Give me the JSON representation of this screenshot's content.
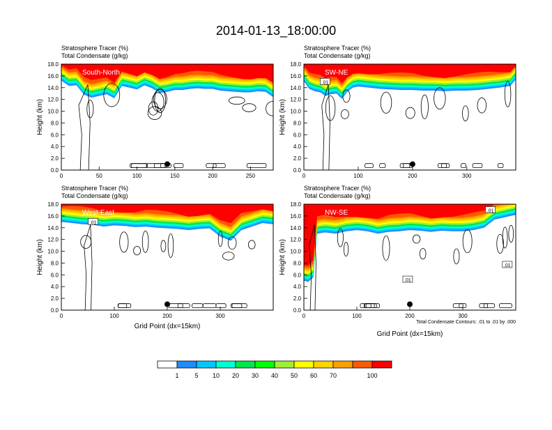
{
  "figure": {
    "title": "2014-01-13_18:00:00"
  },
  "chart_data": [
    {
      "type": "heatmap",
      "panel_label": "South-North",
      "title_lines": [
        "Stratosphere Tracer   (%)",
        "Total Condensate   (g/kg)"
      ],
      "ylabel": "Height (km)",
      "xlabel": "",
      "xlim": [
        0,
        280
      ],
      "xticks": [
        0,
        50,
        100,
        150,
        200,
        250
      ],
      "ylim": [
        0,
        18
      ],
      "yticks": [
        "0.0",
        "2.0",
        "4.0",
        "6.0",
        "8.0",
        "10.0",
        "12.0",
        "14.0",
        "16.0",
        "18.0"
      ],
      "marker_x": 140,
      "tracer_front": [
        [
          0,
          15.2
        ],
        [
          10,
          14.3
        ],
        [
          20,
          14.4
        ],
        [
          30,
          12.8
        ],
        [
          40,
          12.3
        ],
        [
          50,
          12.6
        ],
        [
          60,
          12.9
        ],
        [
          70,
          12.2
        ],
        [
          80,
          14.3
        ],
        [
          90,
          14.0
        ],
        [
          100,
          13.7
        ],
        [
          110,
          14.4
        ],
        [
          120,
          13.9
        ],
        [
          130,
          13.1
        ],
        [
          140,
          13.3
        ],
        [
          150,
          13.6
        ],
        [
          160,
          13.6
        ],
        [
          170,
          13.8
        ],
        [
          180,
          13.9
        ],
        [
          190,
          13.8
        ],
        [
          200,
          13.8
        ],
        [
          210,
          13.5
        ],
        [
          220,
          13.4
        ],
        [
          230,
          13.3
        ],
        [
          240,
          13.2
        ],
        [
          250,
          13.2
        ],
        [
          260,
          13.4
        ],
        [
          270,
          13.3
        ],
        [
          280,
          12.4
        ]
      ],
      "contour_text": []
    },
    {
      "type": "heatmap",
      "panel_label": "SW-NE",
      "title_lines": [
        "Stratosphere Tracer   (%)",
        "Total Condensate   (g/kg)"
      ],
      "ylabel": "Height (km)",
      "xlabel": "",
      "xlim": [
        0,
        390
      ],
      "xticks": [
        0,
        100,
        200,
        300
      ],
      "ylim": [
        0,
        18
      ],
      "yticks": [
        "0.0",
        "2.0",
        "4.0",
        "6.0",
        "8.0",
        "10.0",
        "12.0",
        "14.0",
        "16.0",
        "18.0"
      ],
      "marker_x": 200,
      "tracer_front": [
        [
          0,
          15.1
        ],
        [
          10,
          13.8
        ],
        [
          20,
          13.4
        ],
        [
          30,
          13.2
        ],
        [
          40,
          12.6
        ],
        [
          50,
          12.9
        ],
        [
          60,
          13.0
        ],
        [
          70,
          12.1
        ],
        [
          80,
          13.3
        ],
        [
          90,
          14.0
        ],
        [
          100,
          14.2
        ],
        [
          120,
          14.0
        ],
        [
          140,
          13.8
        ],
        [
          160,
          13.7
        ],
        [
          180,
          13.6
        ],
        [
          200,
          13.6
        ],
        [
          220,
          13.5
        ],
        [
          240,
          13.5
        ],
        [
          260,
          13.4
        ],
        [
          280,
          13.5
        ],
        [
          300,
          13.5
        ],
        [
          320,
          13.6
        ],
        [
          340,
          13.8
        ],
        [
          360,
          14.0
        ],
        [
          380,
          14.3
        ],
        [
          390,
          15.4
        ]
      ],
      "contour_text": [
        ".01"
      ]
    },
    {
      "type": "heatmap",
      "panel_label": "West-East",
      "title_lines": [
        "Stratosphere Tracer   (%)",
        "Total Condensate   (g/kg)"
      ],
      "ylabel": "Height (km)",
      "xlabel": "Grid Point (dx=15km)",
      "xlim": [
        0,
        400
      ],
      "xticks": [
        0,
        100,
        200,
        300
      ],
      "ylim": [
        0,
        18
      ],
      "yticks": [
        "0.0",
        "2.0",
        "4.0",
        "6.0",
        "8.0",
        "10.0",
        "12.0",
        "14.0",
        "16.0",
        "18.0"
      ],
      "marker_x": 200,
      "tracer_front": [
        [
          0,
          15.0
        ],
        [
          20,
          14.8
        ],
        [
          40,
          14.6
        ],
        [
          60,
          14.5
        ],
        [
          80,
          14.2
        ],
        [
          100,
          14.4
        ],
        [
          120,
          14.3
        ],
        [
          140,
          14.1
        ],
        [
          160,
          14.2
        ],
        [
          180,
          14.0
        ],
        [
          200,
          13.9
        ],
        [
          220,
          13.8
        ],
        [
          240,
          13.6
        ],
        [
          260,
          13.8
        ],
        [
          280,
          13.9
        ],
        [
          300,
          12.5
        ],
        [
          320,
          11.8
        ],
        [
          340,
          13.6
        ],
        [
          360,
          14.2
        ],
        [
          380,
          14.8
        ],
        [
          400,
          14.6
        ]
      ],
      "contour_text": [
        ".01"
      ]
    },
    {
      "type": "heatmap",
      "panel_label": "NW-SE",
      "title_lines": [
        "Stratosphere Tracer   (%)",
        "Total Condensate   (g/kg)"
      ],
      "ylabel": "Height (km)",
      "xlabel": "Grid Point (dx=15km)",
      "xlim": [
        0,
        400
      ],
      "xticks": [
        0,
        100,
        200,
        300
      ],
      "ylim": [
        0,
        18
      ],
      "yticks": [
        "0.0",
        "2.0",
        "4.0",
        "6.0",
        "8.0",
        "10.0",
        "12.0",
        "14.0",
        "16.0",
        "18.0"
      ],
      "marker_x": 200,
      "tracer_front": [
        [
          0,
          5.0
        ],
        [
          8,
          4.8
        ],
        [
          18,
          5.6
        ],
        [
          25,
          13.0
        ],
        [
          40,
          13.2
        ],
        [
          60,
          13.0
        ],
        [
          80,
          13.4
        ],
        [
          100,
          13.6
        ],
        [
          120,
          13.4
        ],
        [
          140,
          13.0
        ],
        [
          160,
          13.3
        ],
        [
          180,
          13.4
        ],
        [
          200,
          13.6
        ],
        [
          220,
          13.5
        ],
        [
          240,
          13.3
        ],
        [
          260,
          13.5
        ],
        [
          280,
          13.4
        ],
        [
          300,
          13.4
        ],
        [
          320,
          13.6
        ],
        [
          340,
          14.0
        ],
        [
          360,
          15.4
        ],
        [
          380,
          15.8
        ],
        [
          400,
          16.2
        ]
      ],
      "contour_text": [
        ".01",
        ".01",
        ".01"
      ],
      "footnote": "Total Condensate Contours: .01 to .01 by .000"
    }
  ],
  "colorbar": {
    "levels": [
      "1",
      "5",
      "10",
      "20",
      "30",
      "40",
      "50",
      "60",
      "70",
      "100"
    ],
    "colors": [
      "#ffffff",
      "#1e8cff",
      "#00c8ff",
      "#00ffd2",
      "#00e650",
      "#00ff00",
      "#a0f032",
      "#ffff00",
      "#ffd200",
      "#ffa000",
      "#ff5a00",
      "#ff0000"
    ]
  }
}
